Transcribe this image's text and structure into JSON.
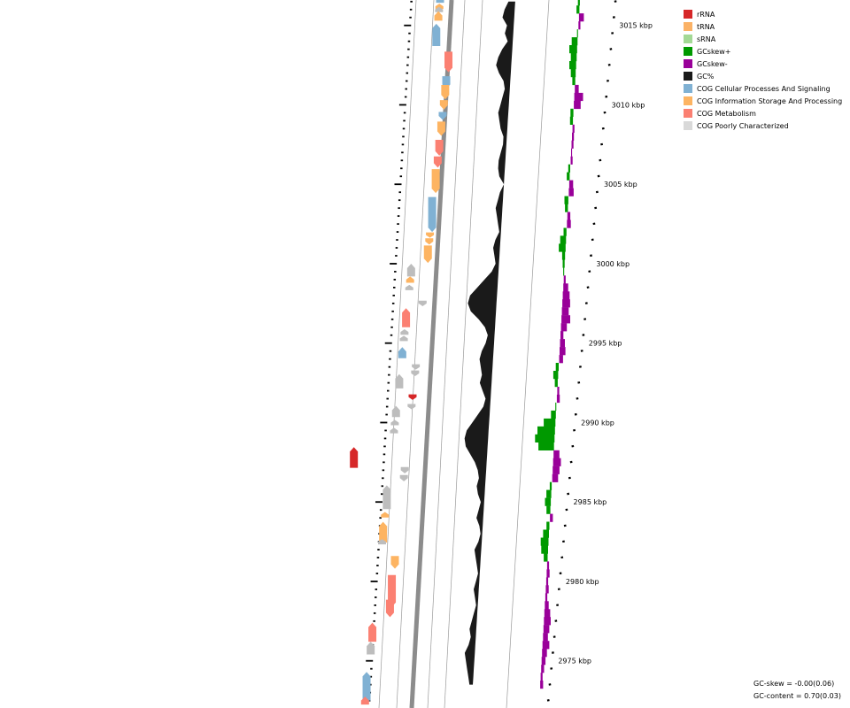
{
  "legend": [
    {
      "label": "rRNA",
      "color": "#d62728"
    },
    {
      "label": "tRNA",
      "color": "#fbb266"
    },
    {
      "label": "sRNA",
      "color": "#a3d995"
    },
    {
      "label": "GCskew+",
      "color": "#009900"
    },
    {
      "label": "GCskew-",
      "color": "#990099"
    },
    {
      "label": "GC%",
      "color": "#1a1a1a"
    },
    {
      "label": "COG Cellular Processes And Signaling",
      "color": "#80b1d3"
    },
    {
      "label": "COG Information Storage And Processing",
      "color": "#fdb462"
    },
    {
      "label": "COG Metabolism",
      "color": "#fb8072"
    },
    {
      "label": "COG Poorly Characterized",
      "color": "#d9d9d9"
    }
  ],
  "ticks": [
    "3015 kbp",
    "3010 kbp",
    "3005 kbp",
    "3000 kbp",
    "2995 kbp",
    "2990 kbp",
    "2985 kbp",
    "2980 kbp",
    "2975 kbp"
  ],
  "stats": {
    "gc_skew": "GC-skew = -0.00(0.06)",
    "gc_content": "GC-content = 0.70(0.03)"
  },
  "tracks": {
    "features": [
      {
        "pos": 3016.6,
        "strand": -1,
        "len": 0.35,
        "cog": "cellular"
      },
      {
        "pos": 3016.2,
        "strand": -1,
        "len": 0.15,
        "cog": "information"
      },
      {
        "pos": 3016.0,
        "strand": -1,
        "len": 0.15,
        "cog": "poorly"
      },
      {
        "pos": 3015.6,
        "strand": -1,
        "len": 0.6,
        "cog": "information"
      },
      {
        "pos": 3014.4,
        "strand": -1,
        "len": 1.4,
        "cog": "cellular"
      },
      {
        "pos": 3012.7,
        "strand": 1,
        "len": 1.3,
        "cog": "metabolism"
      },
      {
        "pos": 3011.4,
        "strand": 1,
        "len": 0.8,
        "cog": "cellular"
      },
      {
        "pos": 3010.8,
        "strand": 1,
        "len": 0.9,
        "cog": "information"
      },
      {
        "pos": 3010.0,
        "strand": 1,
        "len": 0.6,
        "cog": "information"
      },
      {
        "pos": 3009.3,
        "strand": 1,
        "len": 0.5,
        "cog": "cellular"
      },
      {
        "pos": 3008.5,
        "strand": 1,
        "len": 0.9,
        "cog": "information"
      },
      {
        "pos": 3007.3,
        "strand": 1,
        "len": 1.0,
        "cog": "metabolism"
      },
      {
        "pos": 3006.4,
        "strand": 1,
        "len": 0.7,
        "cog": "metabolism"
      },
      {
        "pos": 3005.2,
        "strand": 1,
        "len": 1.5,
        "cog": "information"
      },
      {
        "pos": 3003.1,
        "strand": 1,
        "len": 2.2,
        "cog": "cellular"
      },
      {
        "pos": 3001.4,
        "strand": 1,
        "len": 0.4,
        "cog": "information"
      },
      {
        "pos": 3000.6,
        "strand": 1,
        "len": 1.1,
        "cog": "information"
      },
      {
        "pos": 3001.8,
        "strand": 1,
        "len": 0.3,
        "cog": "information",
        "track": "out"
      },
      {
        "pos": 2999.6,
        "strand": -1,
        "len": 0.8,
        "cog": "poorly"
      },
      {
        "pos": 2999.0,
        "strand": -1,
        "len": 0.4,
        "cog": "information"
      },
      {
        "pos": 2998.5,
        "strand": -1,
        "len": 0.3,
        "cog": "poorly"
      },
      {
        "pos": 2997.5,
        "strand": 1,
        "len": 0.35,
        "cog": "poorly",
        "track": "out"
      },
      {
        "pos": 2996.6,
        "strand": -1,
        "len": 1.2,
        "cog": "metabolism"
      },
      {
        "pos": 2995.7,
        "strand": -1,
        "len": 0.35,
        "cog": "poorly"
      },
      {
        "pos": 2995.3,
        "strand": -1,
        "len": 0.3,
        "cog": "poorly"
      },
      {
        "pos": 2994.4,
        "strand": -1,
        "len": 0.7,
        "cog": "cellular"
      },
      {
        "pos": 2993.5,
        "strand": 1,
        "len": 0.3,
        "cog": "poorly",
        "track": "out"
      },
      {
        "pos": 2993.1,
        "strand": 1,
        "len": 0.35,
        "cog": "poorly",
        "track": "out"
      },
      {
        "pos": 2992.6,
        "strand": -1,
        "len": 0.9,
        "cog": "poorly"
      },
      {
        "pos": 2991.6,
        "strand": 1,
        "len": 0.35,
        "cog": "rrna",
        "track": "out"
      },
      {
        "pos": 2991.0,
        "strand": 1,
        "len": 0.3,
        "cog": "poorly",
        "track": "out"
      },
      {
        "pos": 2990.7,
        "strand": -1,
        "len": 0.7,
        "cog": "poorly"
      },
      {
        "pos": 2990.0,
        "strand": -1,
        "len": 0.3,
        "cog": "poorly"
      },
      {
        "pos": 2989.5,
        "strand": -1,
        "len": 0.35,
        "cog": "poorly"
      },
      {
        "pos": 2987.8,
        "strand": -1,
        "len": 1.3,
        "cog": "rrna",
        "track": "in"
      },
      {
        "pos": 2987.0,
        "strand": 1,
        "len": 0.4,
        "cog": "poorly",
        "track": "out"
      },
      {
        "pos": 2986.5,
        "strand": 1,
        "len": 0.4,
        "cog": "poorly",
        "track": "out"
      },
      {
        "pos": 2985.3,
        "strand": -1,
        "len": 1.5,
        "cog": "poorly"
      },
      {
        "pos": 2984.2,
        "strand": -1,
        "len": 0.35,
        "cog": "information"
      },
      {
        "pos": 2983.1,
        "strand": -1,
        "len": 1.3,
        "cog": "information"
      },
      {
        "pos": 2982.5,
        "strand": -1,
        "len": 0.3,
        "cog": "poorly"
      },
      {
        "pos": 2981.2,
        "strand": 1,
        "len": 0.8,
        "cog": "information",
        "track": "out"
      },
      {
        "pos": 2979.4,
        "strand": 1,
        "len": 2.0,
        "cog": "metabolism",
        "track": "out"
      },
      {
        "pos": 2978.3,
        "strand": 1,
        "len": 1.1,
        "cog": "metabolism",
        "track": "out"
      },
      {
        "pos": 2976.8,
        "strand": -1,
        "len": 1.2,
        "cog": "metabolism"
      },
      {
        "pos": 2975.8,
        "strand": -1,
        "len": 0.8,
        "cog": "poorly"
      },
      {
        "pos": 2973.4,
        "strand": -1,
        "len": 1.8,
        "cog": "cellular"
      },
      {
        "pos": 2972.5,
        "strand": -1,
        "len": 0.5,
        "cog": "metabolism"
      }
    ],
    "gc_content": [
      {
        "pos": 3016.5,
        "value": 0.02
      },
      {
        "pos": 3016.0,
        "value": 0.03
      },
      {
        "pos": 3015.5,
        "value": 0.035
      },
      {
        "pos": 3015.0,
        "value": 0.02
      },
      {
        "pos": 3014.5,
        "value": 0.025
      },
      {
        "pos": 3014.0,
        "value": 0.015
      },
      {
        "pos": 3013.5,
        "value": 0.03
      },
      {
        "pos": 3013.0,
        "value": 0.04
      },
      {
        "pos": 3012.5,
        "value": 0.045
      },
      {
        "pos": 3012.0,
        "value": 0.035
      },
      {
        "pos": 3011.5,
        "value": 0.02
      },
      {
        "pos": 3011.0,
        "value": 0.015
      },
      {
        "pos": 3010.5,
        "value": 0.02
      },
      {
        "pos": 3010.0,
        "value": 0.025
      },
      {
        "pos": 3009.5,
        "value": 0.03
      },
      {
        "pos": 3009.0,
        "value": 0.025
      },
      {
        "pos": 3008.5,
        "value": 0.02
      },
      {
        "pos": 3008.0,
        "value": 0.01
      },
      {
        "pos": 3007.5,
        "value": 0.01
      },
      {
        "pos": 3007.0,
        "value": 0.015
      },
      {
        "pos": 3006.5,
        "value": 0.02
      },
      {
        "pos": 3006.0,
        "value": 0.02
      },
      {
        "pos": 3005.5,
        "value": 0.015
      },
      {
        "pos": 3005.0,
        "value": 0.0
      },
      {
        "pos": 3004.5,
        "value": 0.01
      },
      {
        "pos": 3004.0,
        "value": 0.015
      },
      {
        "pos": 3003.5,
        "value": 0.02
      },
      {
        "pos": 3003.0,
        "value": 0.015
      },
      {
        "pos": 3002.5,
        "value": 0.01
      },
      {
        "pos": 3002.0,
        "value": 0.005
      },
      {
        "pos": 3001.5,
        "value": 0.015
      },
      {
        "pos": 3001.0,
        "value": 0.02
      },
      {
        "pos": 3000.5,
        "value": 0.015
      },
      {
        "pos": 3000.0,
        "value": 0.01
      },
      {
        "pos": 2999.5,
        "value": 0.02
      },
      {
        "pos": 2999.0,
        "value": 0.04
      },
      {
        "pos": 2998.5,
        "value": 0.06
      },
      {
        "pos": 2998.0,
        "value": 0.08
      },
      {
        "pos": 2997.5,
        "value": 0.085
      },
      {
        "pos": 2997.0,
        "value": 0.075
      },
      {
        "pos": 2996.5,
        "value": 0.05
      },
      {
        "pos": 2996.0,
        "value": 0.03
      },
      {
        "pos": 2995.5,
        "value": 0.02
      },
      {
        "pos": 2995.0,
        "value": 0.025
      },
      {
        "pos": 2994.5,
        "value": 0.035
      },
      {
        "pos": 2994.0,
        "value": 0.04
      },
      {
        "pos": 2993.5,
        "value": 0.035
      },
      {
        "pos": 2993.0,
        "value": 0.03
      },
      {
        "pos": 2992.5,
        "value": 0.035
      },
      {
        "pos": 2992.0,
        "value": 0.025
      },
      {
        "pos": 2991.5,
        "value": 0.015
      },
      {
        "pos": 2991.0,
        "value": 0.02
      },
      {
        "pos": 2990.5,
        "value": 0.035
      },
      {
        "pos": 2990.0,
        "value": 0.05
      },
      {
        "pos": 2989.5,
        "value": 0.065
      },
      {
        "pos": 2989.0,
        "value": 0.07
      },
      {
        "pos": 2988.5,
        "value": 0.065
      },
      {
        "pos": 2988.0,
        "value": 0.05
      },
      {
        "pos": 2987.5,
        "value": 0.035
      },
      {
        "pos": 2987.0,
        "value": 0.025
      },
      {
        "pos": 2986.5,
        "value": 0.02
      },
      {
        "pos": 2986.0,
        "value": 0.025
      },
      {
        "pos": 2985.5,
        "value": 0.02
      },
      {
        "pos": 2985.0,
        "value": 0.01
      },
      {
        "pos": 2984.5,
        "value": 0.015
      },
      {
        "pos": 2984.0,
        "value": 0.02
      },
      {
        "pos": 2983.5,
        "value": 0.01
      },
      {
        "pos": 2983.0,
        "value": 0.005
      },
      {
        "pos": 2982.5,
        "value": 0.01
      },
      {
        "pos": 2982.0,
        "value": 0.02
      },
      {
        "pos": 2981.5,
        "value": 0.015
      },
      {
        "pos": 2981.0,
        "value": 0.01
      },
      {
        "pos": 2980.5,
        "value": 0.005
      },
      {
        "pos": 2980.0,
        "value": 0.01
      },
      {
        "pos": 2979.5,
        "value": 0.015
      },
      {
        "pos": 2979.0,
        "value": 0.01
      },
      {
        "pos": 2978.5,
        "value": 0.005
      },
      {
        "pos": 2978.0,
        "value": 0.01
      },
      {
        "pos": 2977.5,
        "value": 0.015
      },
      {
        "pos": 2977.0,
        "value": 0.02
      },
      {
        "pos": 2976.5,
        "value": 0.015
      },
      {
        "pos": 2976.0,
        "value": 0.02
      },
      {
        "pos": 2975.5,
        "value": 0.03
      },
      {
        "pos": 2975.0,
        "value": 0.025
      },
      {
        "pos": 2974.5,
        "value": 0.02
      },
      {
        "pos": 2974.0,
        "value": 0.015
      },
      {
        "pos": 2973.5,
        "value": 0.01
      }
    ],
    "gc_skew": [
      {
        "pos": 3016.5,
        "value": 0.02
      },
      {
        "pos": 3016.0,
        "value": 0.03
      },
      {
        "pos": 3015.5,
        "value": -0.05
      },
      {
        "pos": 3015.0,
        "value": -0.02
      },
      {
        "pos": 3014.5,
        "value": 0.01
      },
      {
        "pos": 3014.0,
        "value": 0.06
      },
      {
        "pos": 3013.5,
        "value": 0.08
      },
      {
        "pos": 3013.0,
        "value": 0.06
      },
      {
        "pos": 3012.5,
        "value": 0.07
      },
      {
        "pos": 3012.0,
        "value": 0.05
      },
      {
        "pos": 3011.5,
        "value": 0.03
      },
      {
        "pos": 3011.0,
        "value": -0.04
      },
      {
        "pos": 3010.5,
        "value": -0.09
      },
      {
        "pos": 3010.0,
        "value": -0.07
      },
      {
        "pos": 3009.5,
        "value": 0.03
      },
      {
        "pos": 3009.0,
        "value": 0.03
      },
      {
        "pos": 3008.5,
        "value": -0.02
      },
      {
        "pos": 3008.0,
        "value": -0.02
      },
      {
        "pos": 3007.5,
        "value": -0.02
      },
      {
        "pos": 3007.0,
        "value": -0.01
      },
      {
        "pos": 3006.5,
        "value": -0.02
      },
      {
        "pos": 3006.0,
        "value": 0.02
      },
      {
        "pos": 3005.5,
        "value": 0.03
      },
      {
        "pos": 3005.0,
        "value": -0.04
      },
      {
        "pos": 3004.5,
        "value": -0.05
      },
      {
        "pos": 3004.0,
        "value": 0.04
      },
      {
        "pos": 3003.5,
        "value": 0.03
      },
      {
        "pos": 3003.0,
        "value": -0.03
      },
      {
        "pos": 3002.5,
        "value": -0.04
      },
      {
        "pos": 3002.0,
        "value": 0.03
      },
      {
        "pos": 3001.5,
        "value": 0.06
      },
      {
        "pos": 3001.0,
        "value": 0.07
      },
      {
        "pos": 3000.5,
        "value": 0.03
      },
      {
        "pos": 3000.0,
        "value": 0.02
      },
      {
        "pos": 2999.5,
        "value": 0.01
      },
      {
        "pos": 2999.0,
        "value": -0.02
      },
      {
        "pos": 2998.5,
        "value": -0.05
      },
      {
        "pos": 2998.0,
        "value": -0.07
      },
      {
        "pos": 2997.5,
        "value": -0.08
      },
      {
        "pos": 2997.0,
        "value": -0.07
      },
      {
        "pos": 2996.5,
        "value": -0.09
      },
      {
        "pos": 2996.0,
        "value": -0.06
      },
      {
        "pos": 2995.5,
        "value": -0.03
      },
      {
        "pos": 2995.0,
        "value": -0.05
      },
      {
        "pos": 2994.5,
        "value": -0.06
      },
      {
        "pos": 2994.0,
        "value": -0.04
      },
      {
        "pos": 2993.5,
        "value": 0.03
      },
      {
        "pos": 2993.0,
        "value": 0.05
      },
      {
        "pos": 2992.5,
        "value": 0.03
      },
      {
        "pos": 2992.0,
        "value": -0.02
      },
      {
        "pos": 2991.5,
        "value": -0.03
      },
      {
        "pos": 2991.0,
        "value": 0.01
      },
      {
        "pos": 2990.5,
        "value": 0.05
      },
      {
        "pos": 2990.0,
        "value": 0.12
      },
      {
        "pos": 2989.5,
        "value": 0.18
      },
      {
        "pos": 2989.0,
        "value": 0.2
      },
      {
        "pos": 2988.5,
        "value": 0.16
      },
      {
        "pos": 2988.0,
        "value": -0.06
      },
      {
        "pos": 2987.5,
        "value": -0.08
      },
      {
        "pos": 2987.0,
        "value": -0.07
      },
      {
        "pos": 2986.5,
        "value": -0.06
      },
      {
        "pos": 2986.0,
        "value": 0.02
      },
      {
        "pos": 2985.5,
        "value": 0.05
      },
      {
        "pos": 2985.0,
        "value": 0.06
      },
      {
        "pos": 2984.5,
        "value": 0.04
      },
      {
        "pos": 2984.0,
        "value": -0.03
      },
      {
        "pos": 2983.5,
        "value": 0.03
      },
      {
        "pos": 2983.0,
        "value": 0.06
      },
      {
        "pos": 2982.5,
        "value": 0.08
      },
      {
        "pos": 2982.0,
        "value": 0.07
      },
      {
        "pos": 2981.5,
        "value": 0.04
      },
      {
        "pos": 2981.0,
        "value": -0.02
      },
      {
        "pos": 2980.5,
        "value": -0.03
      },
      {
        "pos": 2980.0,
        "value": -0.02
      },
      {
        "pos": 2979.5,
        "value": -0.03
      },
      {
        "pos": 2979.0,
        "value": -0.02
      },
      {
        "pos": 2978.5,
        "value": -0.04
      },
      {
        "pos": 2978.0,
        "value": -0.06
      },
      {
        "pos": 2977.5,
        "value": -0.07
      },
      {
        "pos": 2977.0,
        "value": -0.06
      },
      {
        "pos": 2976.5,
        "value": -0.05
      },
      {
        "pos": 2976.0,
        "value": -0.07
      },
      {
        "pos": 2975.5,
        "value": -0.05
      },
      {
        "pos": 2975.0,
        "value": -0.04
      },
      {
        "pos": 2974.5,
        "value": -0.03
      },
      {
        "pos": 2974.0,
        "value": -0.02
      },
      {
        "pos": 2973.5,
        "value": -0.03
      }
    ]
  }
}
